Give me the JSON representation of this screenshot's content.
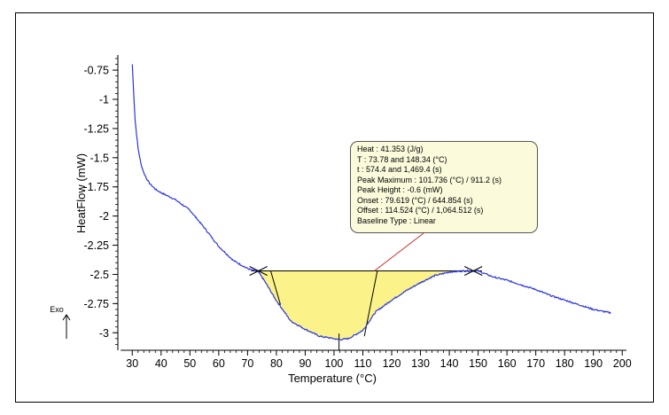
{
  "colors": {
    "curve": "#2b35e0",
    "fill": "#fbf38a",
    "baseline": "#000000",
    "leader": "#cc2a2a",
    "box_bg": "#fbfbdc"
  },
  "chart_data": {
    "type": "line",
    "xlabel": "Temperature (°C)",
    "ylabel": "HeatFlow (mW)",
    "xlim": [
      25,
      203
    ],
    "ylim": [
      -3.15,
      -0.62
    ],
    "x_ticks": [
      30,
      40,
      50,
      60,
      70,
      80,
      90,
      100,
      110,
      120,
      130,
      140,
      150,
      160,
      170,
      180,
      190,
      200
    ],
    "y_ticks": [
      -0.75,
      -1,
      -1.25,
      -1.5,
      -1.75,
      -2,
      -2.25,
      -2.5,
      -2.75,
      -3
    ],
    "exo_label": "Exo",
    "series": [
      {
        "x": [
          30,
          30.5,
          31,
          32,
          33,
          34,
          35,
          36,
          38,
          40,
          45,
          50,
          55,
          60,
          65,
          70,
          73.78,
          76,
          79.6,
          85,
          90,
          95,
          100,
          101.7,
          105,
          110,
          114.5,
          120,
          125,
          130,
          135,
          140,
          145,
          148.34,
          150,
          155,
          160,
          165,
          170,
          175,
          180,
          185,
          190,
          196
        ],
        "y": [
          -0.7,
          -0.95,
          -1.18,
          -1.42,
          -1.55,
          -1.63,
          -1.68,
          -1.72,
          -1.77,
          -1.8,
          -1.86,
          -1.95,
          -2.1,
          -2.26,
          -2.38,
          -2.45,
          -2.48,
          -2.56,
          -2.71,
          -2.9,
          -2.97,
          -3.03,
          -3.05,
          -3.06,
          -3.05,
          -2.98,
          -2.82,
          -2.72,
          -2.64,
          -2.57,
          -2.51,
          -2.48,
          -2.47,
          -2.47,
          -2.47,
          -2.52,
          -2.55,
          -2.59,
          -2.63,
          -2.68,
          -2.72,
          -2.76,
          -2.8,
          -2.83
        ]
      }
    ],
    "integration": {
      "start_x": 73.78,
      "end_x": 148.34,
      "baseline_y": -2.47,
      "onset_x": 79.619,
      "offset_x": 114.524,
      "peak_x": 101.736,
      "peak_y": -3.06
    }
  },
  "results": {
    "heat": "Heat : 41.353 (J/g)",
    "t_range": "T : 73.78 and 148.34 (°C)",
    "time_range": "t : 574.4 and 1,469.4 (s)",
    "peak_max": "Peak Maximum : 101.736 (°C) / 911.2 (s)",
    "peak_height": "Peak Height : -0.6 (mW)",
    "onset": "Onset : 79.619 (°C) / 644.854 (s)",
    "offset": "Offset : 114.524 (°C) / 1,064.512 (s)",
    "baseline_type": "Baseline Type : Linear"
  }
}
